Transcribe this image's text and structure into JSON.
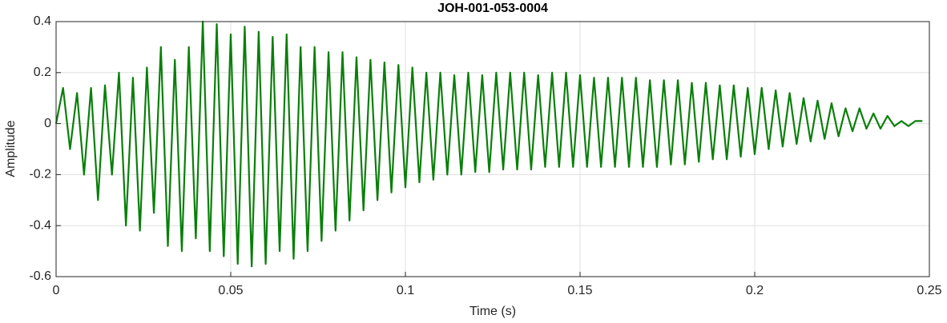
{
  "chart_data": {
    "type": "line",
    "title": "JOH-001-053-0004",
    "x_label": "Time (s)",
    "y_label": "Amplitude",
    "xlim": [
      0,
      0.25
    ],
    "xticks": [
      0,
      0.05,
      0.1,
      0.15,
      0.2,
      0.25
    ],
    "ylim": [
      -0.6,
      0.4
    ],
    "yticks": [
      -0.6,
      -0.4,
      -0.2,
      0,
      0.2,
      0.4
    ],
    "grid": true,
    "x": [
      0,
      0.002,
      0.004,
      0.006,
      0.008,
      0.01,
      0.012,
      0.014,
      0.016,
      0.018,
      0.02,
      0.022,
      0.024,
      0.026,
      0.028,
      0.03,
      0.032,
      0.034,
      0.036,
      0.038,
      0.04,
      0.042,
      0.044,
      0.046,
      0.048,
      0.05,
      0.052,
      0.054,
      0.056,
      0.058,
      0.06,
      0.062,
      0.064,
      0.066,
      0.068,
      0.07,
      0.072,
      0.074,
      0.076,
      0.078,
      0.08,
      0.082,
      0.084,
      0.086,
      0.088,
      0.09,
      0.092,
      0.094,
      0.096,
      0.098,
      0.1,
      0.102,
      0.104,
      0.106,
      0.108,
      0.11,
      0.112,
      0.114,
      0.116,
      0.118,
      0.12,
      0.122,
      0.124,
      0.126,
      0.128,
      0.13,
      0.132,
      0.134,
      0.136,
      0.138,
      0.14,
      0.142,
      0.144,
      0.146,
      0.148,
      0.15,
      0.152,
      0.154,
      0.156,
      0.158,
      0.16,
      0.162,
      0.164,
      0.166,
      0.168,
      0.17,
      0.172,
      0.174,
      0.176,
      0.178,
      0.18,
      0.182,
      0.184,
      0.186,
      0.188,
      0.19,
      0.192,
      0.194,
      0.196,
      0.198,
      0.2,
      0.202,
      0.204,
      0.206,
      0.208,
      0.21,
      0.212,
      0.214,
      0.216,
      0.218,
      0.22,
      0.222,
      0.224,
      0.226,
      0.228,
      0.23,
      0.232,
      0.234,
      0.236,
      0.238,
      0.24,
      0.242,
      0.244,
      0.246,
      0.248
    ],
    "series": [
      {
        "color": "#0a7f0a",
        "values": [
          0,
          0.14,
          -0.1,
          0.12,
          -0.2,
          0.14,
          -0.3,
          0.15,
          -0.2,
          0.2,
          -0.4,
          0.18,
          -0.42,
          0.22,
          -0.35,
          0.3,
          -0.48,
          0.25,
          -0.5,
          0.3,
          -0.45,
          0.4,
          -0.5,
          0.39,
          -0.52,
          0.35,
          -0.55,
          0.38,
          -0.56,
          0.36,
          -0.55,
          0.34,
          -0.5,
          0.35,
          -0.53,
          0.3,
          -0.5,
          0.3,
          -0.46,
          0.28,
          -0.42,
          0.28,
          -0.38,
          0.26,
          -0.34,
          0.25,
          -0.3,
          0.24,
          -0.27,
          0.23,
          -0.25,
          0.22,
          -0.23,
          0.2,
          -0.22,
          0.2,
          -0.2,
          0.19,
          -0.2,
          0.2,
          -0.19,
          0.19,
          -0.19,
          0.2,
          -0.18,
          0.2,
          -0.18,
          0.2,
          -0.18,
          0.19,
          -0.17,
          0.2,
          -0.17,
          0.2,
          -0.17,
          0.19,
          -0.17,
          0.18,
          -0.17,
          0.18,
          -0.17,
          0.18,
          -0.17,
          0.18,
          -0.17,
          0.17,
          -0.17,
          0.17,
          -0.16,
          0.17,
          -0.16,
          0.16,
          -0.15,
          0.16,
          -0.14,
          0.15,
          -0.14,
          0.15,
          -0.13,
          0.14,
          -0.12,
          0.14,
          -0.1,
          0.13,
          -0.09,
          0.12,
          -0.08,
          0.1,
          -0.07,
          0.09,
          -0.06,
          0.08,
          -0.05,
          0.06,
          -0.03,
          0.06,
          -0.02,
          0.04,
          -0.02,
          0.03,
          -0.01,
          0.01,
          -0.01,
          0.01,
          0.01
        ]
      }
    ]
  }
}
